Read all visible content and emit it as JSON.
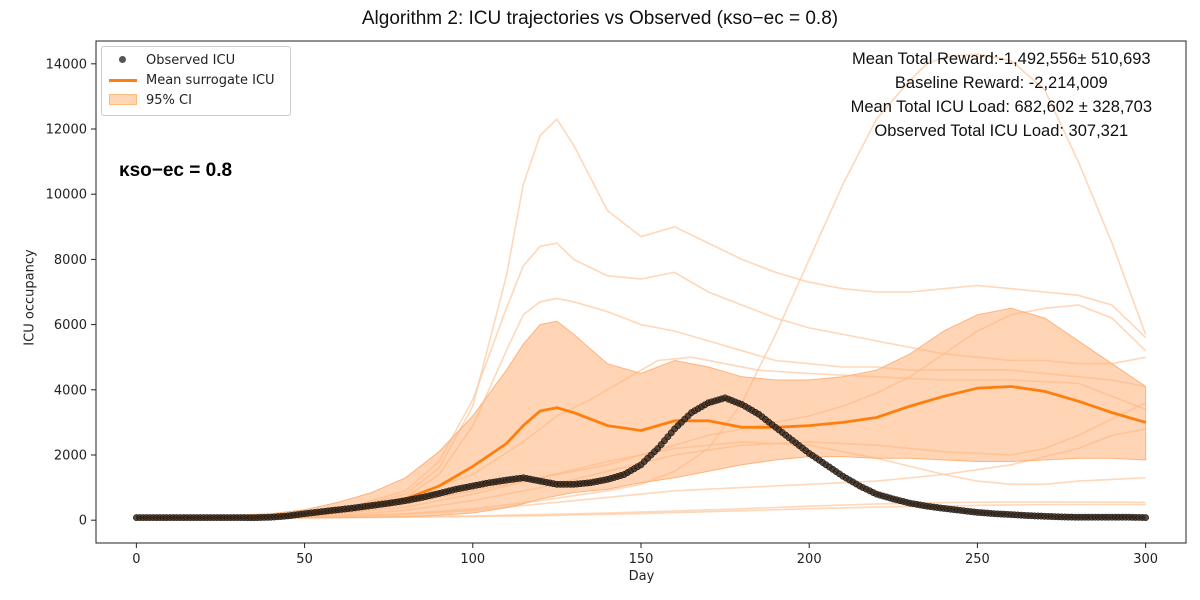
{
  "chart_data": {
    "type": "line",
    "title": "Algorithm 2: ICU trajectories vs Observed (κso−ec = 0.8)",
    "xlabel": "Day",
    "ylabel": "ICU occupancy",
    "xlim": [
      -12,
      312
    ],
    "ylim": [
      -700,
      14700
    ],
    "xticks": [
      0,
      50,
      100,
      150,
      200,
      250,
      300
    ],
    "yticks": [
      0,
      2000,
      4000,
      6000,
      8000,
      10000,
      12000,
      14000
    ],
    "grid": false,
    "legend_position": "top-left",
    "legend": [
      "Observed ICU",
      "Mean surrogate ICU",
      "95% CI"
    ],
    "colors": {
      "mean": "#ff7f0e",
      "ci": "#ffb27a",
      "trajectory": "#ffc9a1",
      "observed": "#3a2a1f"
    },
    "kappa_label": "κso−ec = 0.8",
    "annotations": [
      "Mean Total Reward:-1,492,556± 510,693",
      "Baseline Reward: -2,214,009",
      "Mean Total ICU Load: 682,602 ± 328,703",
      "Observed Total ICU Load: 307,321"
    ],
    "observed": {
      "name": "Observed ICU",
      "x": [
        0,
        10,
        20,
        30,
        35,
        40,
        45,
        50,
        55,
        60,
        65,
        70,
        75,
        80,
        85,
        90,
        95,
        100,
        105,
        110,
        115,
        120,
        125,
        130,
        135,
        140,
        145,
        150,
        155,
        160,
        165,
        170,
        175,
        180,
        185,
        190,
        195,
        200,
        205,
        210,
        215,
        220,
        225,
        230,
        235,
        240,
        245,
        250,
        255,
        260,
        265,
        270,
        275,
        280,
        285,
        290,
        295,
        300
      ],
      "y": [
        80,
        80,
        80,
        80,
        75,
        90,
        130,
        200,
        260,
        320,
        380,
        450,
        520,
        600,
        700,
        820,
        950,
        1050,
        1150,
        1230,
        1300,
        1200,
        1100,
        1100,
        1150,
        1250,
        1400,
        1700,
        2200,
        2800,
        3300,
        3600,
        3750,
        3550,
        3250,
        2850,
        2450,
        2050,
        1700,
        1350,
        1050,
        800,
        650,
        520,
        430,
        360,
        300,
        240,
        200,
        170,
        140,
        120,
        100,
        90,
        90,
        90,
        90,
        80
      ]
    },
    "mean_surrogate": {
      "name": "Mean surrogate ICU",
      "x": [
        0,
        20,
        40,
        50,
        60,
        70,
        80,
        90,
        100,
        110,
        115,
        120,
        125,
        130,
        140,
        150,
        160,
        170,
        180,
        190,
        200,
        210,
        220,
        230,
        240,
        250,
        260,
        270,
        280,
        290,
        300
      ],
      "y": [
        80,
        80,
        120,
        180,
        280,
        420,
        650,
        1050,
        1650,
        2350,
        2900,
        3350,
        3450,
        3300,
        2900,
        2750,
        3050,
        3050,
        2850,
        2850,
        2900,
        3000,
        3150,
        3500,
        3800,
        4050,
        4100,
        3950,
        3650,
        3300,
        3000
      ]
    },
    "ci_95": {
      "name": "95% CI",
      "x": [
        0,
        20,
        40,
        50,
        60,
        70,
        80,
        90,
        100,
        110,
        115,
        120,
        125,
        130,
        140,
        150,
        160,
        170,
        180,
        190,
        200,
        210,
        220,
        230,
        240,
        250,
        260,
        270,
        280,
        290,
        300
      ],
      "lower": [
        50,
        50,
        60,
        70,
        80,
        90,
        110,
        150,
        220,
        380,
        500,
        650,
        750,
        850,
        950,
        1150,
        1300,
        1500,
        1700,
        1850,
        1950,
        1950,
        1900,
        1900,
        1850,
        1800,
        1800,
        1850,
        1900,
        1900,
        1850
      ],
      "upper": [
        100,
        110,
        200,
        320,
        550,
        850,
        1300,
        2100,
        3200,
        4600,
        5400,
        6000,
        6100,
        5700,
        4800,
        4500,
        4900,
        4700,
        4400,
        4300,
        4300,
        4400,
        4600,
        5100,
        5800,
        6300,
        6500,
        6200,
        5500,
        4800,
        4100
      ]
    },
    "trajectories": [
      {
        "x": [
          0,
          40,
          60,
          80,
          90,
          100,
          110,
          115,
          120,
          125,
          130,
          140,
          150,
          160,
          170,
          180,
          190,
          200,
          210,
          220,
          230,
          240,
          250,
          260,
          270,
          280,
          290,
          300
        ],
        "y": [
          80,
          120,
          300,
          800,
          1600,
          3500,
          7500,
          10300,
          11800,
          12300,
          11500,
          9500,
          8700,
          9000,
          8500,
          8000,
          7600,
          7300,
          7100,
          7000,
          7000,
          7100,
          7200,
          7100,
          7000,
          6900,
          6600,
          5600
        ]
      },
      {
        "x": [
          0,
          40,
          60,
          80,
          90,
          100,
          110,
          115,
          120,
          125,
          130,
          140,
          150,
          160,
          170,
          180,
          190,
          200,
          210,
          220,
          230,
          240,
          250,
          260,
          270,
          280,
          290,
          300
        ],
        "y": [
          80,
          100,
          300,
          900,
          1800,
          3700,
          6500,
          7800,
          8400,
          8500,
          8000,
          7500,
          7400,
          7600,
          7000,
          6600,
          6200,
          5900,
          5700,
          5500,
          5300,
          5100,
          5000,
          4900,
          4900,
          4800,
          4800,
          5000
        ]
      },
      {
        "x": [
          0,
          40,
          60,
          80,
          90,
          100,
          110,
          115,
          120,
          125,
          130,
          140,
          150,
          160,
          170,
          180,
          190,
          200,
          210,
          220,
          230,
          240,
          250,
          260,
          270,
          280,
          290,
          300
        ],
        "y": [
          80,
          90,
          250,
          700,
          1400,
          2900,
          5200,
          6300,
          6700,
          6800,
          6700,
          6400,
          6000,
          5800,
          5500,
          5200,
          4900,
          4800,
          4700,
          4700,
          4600,
          4600,
          4600,
          4600,
          4500,
          4400,
          4300,
          4100
        ]
      },
      {
        "x": [
          0,
          40,
          60,
          80,
          100,
          120,
          140,
          150,
          160,
          170,
          180,
          190,
          200,
          210,
          220,
          230,
          235,
          240,
          250,
          260,
          270,
          280,
          290,
          300
        ],
        "y": [
          70,
          80,
          120,
          200,
          350,
          600,
          900,
          1100,
          1500,
          2200,
          3600,
          5700,
          8000,
          10300,
          12300,
          13500,
          14000,
          14200,
          14300,
          14100,
          13200,
          11000,
          8500,
          5700
        ]
      },
      {
        "x": [
          0,
          40,
          60,
          80,
          100,
          120,
          140,
          150,
          160,
          170,
          180,
          190,
          200,
          210,
          220,
          230,
          240,
          250,
          260,
          270,
          280,
          290,
          300
        ],
        "y": [
          70,
          90,
          200,
          500,
          900,
          1300,
          1700,
          2000,
          2300,
          2600,
          2800,
          3000,
          3200,
          3500,
          3900,
          4400,
          5100,
          5800,
          6300,
          6500,
          6600,
          6200,
          5200
        ]
      },
      {
        "x": [
          0,
          40,
          60,
          80,
          100,
          115,
          125,
          135,
          145,
          155,
          165,
          175,
          185,
          200,
          220,
          240,
          260,
          280,
          300
        ],
        "y": [
          70,
          100,
          300,
          700,
          1400,
          2400,
          3200,
          3700,
          4300,
          4900,
          5000,
          4800,
          4600,
          4500,
          4400,
          4300,
          4300,
          4200,
          3400
        ]
      },
      {
        "x": [
          0,
          40,
          60,
          80,
          100,
          120,
          140,
          160,
          180,
          200,
          220,
          240,
          260,
          280,
          300
        ],
        "y": [
          60,
          70,
          80,
          100,
          130,
          170,
          220,
          280,
          350,
          430,
          500,
          540,
          560,
          560,
          550
        ]
      },
      {
        "x": [
          0,
          40,
          60,
          80,
          100,
          120,
          140,
          160,
          180,
          200,
          220,
          240,
          260,
          280,
          300
        ],
        "y": [
          60,
          65,
          75,
          90,
          110,
          140,
          180,
          230,
          290,
          350,
          400,
          440,
          470,
          480,
          480
        ]
      },
      {
        "x": [
          0,
          40,
          60,
          80,
          100,
          120,
          140,
          160,
          180,
          200,
          220,
          240,
          250,
          260,
          270,
          280,
          290,
          300
        ],
        "y": [
          70,
          90,
          200,
          400,
          800,
          1300,
          1800,
          2200,
          2400,
          2300,
          1900,
          1400,
          1200,
          1100,
          1100,
          1200,
          1250,
          1300
        ]
      },
      {
        "x": [
          0,
          40,
          60,
          80,
          100,
          120,
          140,
          160,
          180,
          200,
          220,
          240,
          260,
          270,
          280,
          290,
          300
        ],
        "y": [
          70,
          80,
          150,
          300,
          600,
          1000,
          1500,
          2000,
          2300,
          2400,
          2300,
          2100,
          2000,
          2200,
          2600,
          3100,
          3600
        ]
      },
      {
        "x": [
          0,
          40,
          60,
          80,
          100,
          120,
          140,
          160,
          180,
          200,
          220,
          240,
          260,
          280,
          290,
          300
        ],
        "y": [
          60,
          70,
          100,
          180,
          300,
          500,
          700,
          900,
          1000,
          1100,
          1200,
          1400,
          1700,
          2200,
          2600,
          2800
        ]
      }
    ]
  }
}
